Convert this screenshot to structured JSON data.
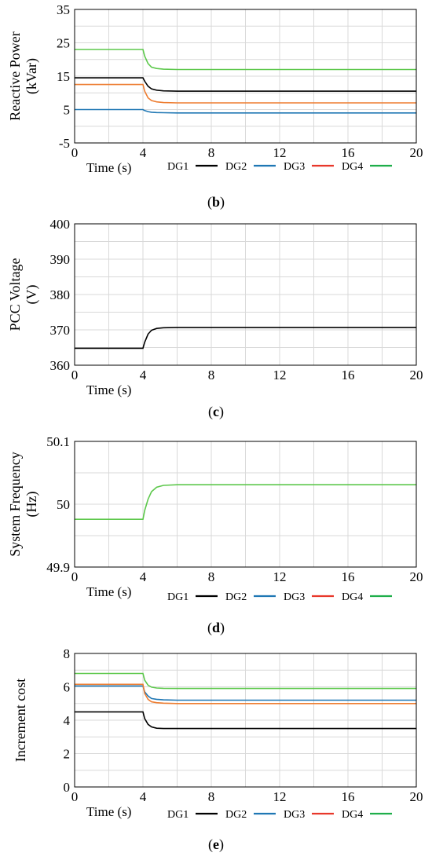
{
  "chart_data": [
    {
      "type": "line",
      "caption_letter": "b",
      "ylabel_lines": [
        "Reactive Power",
        "(kVar)"
      ],
      "xlabel": "Time (s)",
      "xlim": [
        0,
        20
      ],
      "ylim": [
        -5,
        35
      ],
      "x_ticks": [
        "0",
        "4",
        "8",
        "12",
        "16",
        "20"
      ],
      "y_ticks": [
        "-5",
        "5",
        "15",
        "25",
        "35"
      ],
      "grid": true,
      "legend": [
        "DG1",
        "DG2",
        "DG3",
        "DG4"
      ],
      "series": [
        {
          "name": "DG1",
          "color": "#000000",
          "x": [
            0,
            4,
            4.1,
            4.3,
            4.5,
            4.8,
            5.2,
            6,
            20
          ],
          "y": [
            14.5,
            14.5,
            13.5,
            12.0,
            11.2,
            10.8,
            10.6,
            10.5,
            10.5
          ]
        },
        {
          "name": "DG2",
          "color": "#1f77b4",
          "x": [
            0,
            4,
            4.1,
            4.3,
            4.5,
            4.8,
            5.2,
            6,
            20
          ],
          "y": [
            5,
            5,
            4.7,
            4.4,
            4.2,
            4.1,
            4.05,
            4,
            4
          ]
        },
        {
          "name": "DG3",
          "color": "#ed7d31",
          "x": [
            0,
            4,
            4.1,
            4.3,
            4.5,
            4.8,
            5.2,
            6,
            20
          ],
          "y": [
            12.5,
            12.5,
            10.5,
            8.5,
            7.7,
            7.3,
            7.1,
            7,
            7
          ]
        },
        {
          "name": "DG4",
          "color": "#5dc84c",
          "x": [
            0,
            4,
            4.1,
            4.3,
            4.5,
            4.8,
            5.2,
            6,
            20
          ],
          "y": [
            23,
            23,
            21,
            18.8,
            17.7,
            17.3,
            17.1,
            17,
            17
          ]
        }
      ]
    },
    {
      "type": "line",
      "caption_letter": "c",
      "ylabel_lines": [
        "PCC Voltage",
        "(V)"
      ],
      "xlabel": "Time (s)",
      "xlim": [
        0,
        20
      ],
      "ylim": [
        360,
        400
      ],
      "x_ticks": [
        "0",
        "4",
        "8",
        "12",
        "16",
        "20"
      ],
      "y_ticks": [
        "360",
        "370",
        "380",
        "390",
        "400"
      ],
      "grid": true,
      "legend": [],
      "series": [
        {
          "color": "#000000",
          "x": [
            0,
            4,
            4.1,
            4.3,
            4.5,
            4.8,
            5.2,
            6,
            20
          ],
          "y": [
            364.8,
            364.8,
            366.5,
            368.8,
            369.9,
            370.4,
            370.6,
            370.7,
            370.7
          ]
        }
      ]
    },
    {
      "type": "line",
      "caption_letter": "d",
      "ylabel_lines": [
        "System Frequency",
        "(Hz)"
      ],
      "xlabel": "Time (s)",
      "xlim": [
        0,
        20
      ],
      "ylim": [
        49.9,
        50.1
      ],
      "x_ticks": [
        "0",
        "4",
        "8",
        "12",
        "16",
        "20"
      ],
      "y_ticks": [
        "49.9",
        "50",
        "50.1"
      ],
      "grid": true,
      "legend": [
        "DG1",
        "DG2",
        "DG3",
        "DG4"
      ],
      "series": [
        {
          "name": "DG4",
          "color": "#5dc84c",
          "x": [
            0,
            4,
            4.1,
            4.3,
            4.5,
            4.8,
            5.2,
            6,
            20
          ],
          "y": [
            49.976,
            49.976,
            49.99,
            50.008,
            50.02,
            50.027,
            50.03,
            50.031,
            50.031
          ]
        }
      ]
    },
    {
      "type": "line",
      "caption_letter": "e",
      "ylabel_lines": [
        "Increment cost"
      ],
      "xlabel": "Time (s)",
      "xlim": [
        0,
        20
      ],
      "ylim": [
        0,
        8
      ],
      "x_ticks": [
        "0",
        "4",
        "8",
        "12",
        "16",
        "20"
      ],
      "y_ticks": [
        "0",
        "2",
        "4",
        "6",
        "8"
      ],
      "grid": true,
      "legend": [
        "DG1",
        "DG2",
        "DG3",
        "DG4"
      ],
      "series": [
        {
          "name": "DG1",
          "color": "#000000",
          "x": [
            0,
            4,
            4.1,
            4.3,
            4.5,
            4.8,
            5.2,
            6,
            20
          ],
          "y": [
            4.5,
            4.5,
            4.1,
            3.75,
            3.6,
            3.52,
            3.5,
            3.5,
            3.5
          ]
        },
        {
          "name": "DG2",
          "color": "#1f77b4",
          "x": [
            0,
            4,
            4.1,
            4.3,
            4.5,
            4.8,
            5.2,
            6,
            20
          ],
          "y": [
            6.05,
            6.05,
            5.7,
            5.45,
            5.3,
            5.25,
            5.22,
            5.2,
            5.2
          ]
        },
        {
          "name": "DG3",
          "color": "#ed7d31",
          "x": [
            0,
            4,
            4.1,
            4.3,
            4.5,
            4.8,
            5.2,
            6,
            20
          ],
          "y": [
            6.15,
            6.15,
            5.6,
            5.25,
            5.1,
            5.05,
            5.02,
            5.0,
            5.0
          ]
        },
        {
          "name": "DG4",
          "color": "#5dc84c",
          "x": [
            0,
            4,
            4.1,
            4.3,
            4.5,
            4.8,
            5.2,
            6,
            20
          ],
          "y": [
            6.8,
            6.8,
            6.4,
            6.1,
            5.98,
            5.93,
            5.91,
            5.9,
            5.9
          ]
        }
      ]
    }
  ],
  "legend_colors": {
    "DG1": "#000000",
    "DG2": "#1f77b4",
    "DG3": "#e8382b",
    "DG4": "#1fae4a"
  }
}
